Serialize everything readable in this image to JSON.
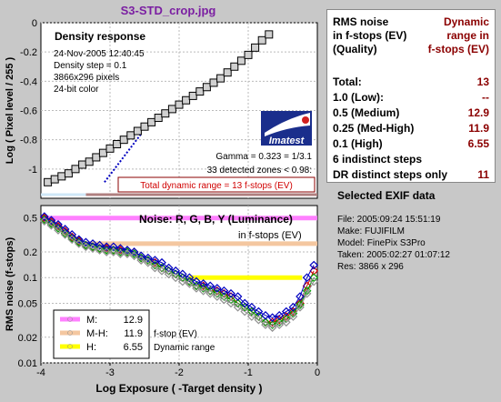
{
  "window_title": "S3-STD_crop.jpg",
  "colors": {
    "title": "#7b1fa2",
    "dark_red": "#8b0000",
    "red": "#d00000",
    "blue": "#0000c0",
    "green": "#00a000",
    "magenta": "#ff80ff",
    "peach": "#f4c7a0",
    "yellow": "#ffff00"
  },
  "chart_data": [
    {
      "type": "line",
      "title": "Density response",
      "info_lines": [
        "24-Nov-2005 12:40:45",
        "Density step = 0.1",
        "3866x296 pixels",
        "24-bit color"
      ],
      "ylabel": "Log ( Pixel level / 255 )",
      "xlim": [
        -4,
        0
      ],
      "ylim": [
        -1.2,
        0
      ],
      "yticks": [
        0,
        -0.2,
        -0.4,
        -0.6,
        -0.8,
        -1
      ],
      "ytick_labels": [
        "0",
        "-0.2",
        "-0.4",
        "-0.6",
        "-0.8",
        "-1"
      ],
      "series": [
        {
          "x": [
            -3.9,
            -3.8,
            -3.7,
            -3.6,
            -3.5,
            -3.4,
            -3.3,
            -3.2,
            -3.1,
            -3.0,
            -2.9,
            -2.8,
            -2.7,
            -2.6,
            -2.5,
            -2.4,
            -2.3,
            -2.2,
            -2.1,
            -2.0,
            -1.9,
            -1.8,
            -1.7,
            -1.6,
            -1.5,
            -1.4,
            -1.3,
            -1.2,
            -1.1,
            -1.0,
            -0.9,
            -0.8,
            -0.7
          ],
          "values": [
            -1.09,
            -1.07,
            -1.05,
            -1.03,
            -1.0,
            -0.97,
            -0.95,
            -0.92,
            -0.89,
            -0.86,
            -0.83,
            -0.8,
            -0.77,
            -0.74,
            -0.71,
            -0.68,
            -0.65,
            -0.62,
            -0.59,
            -0.56,
            -0.53,
            -0.5,
            -0.47,
            -0.44,
            -0.41,
            -0.38,
            -0.34,
            -0.3,
            -0.26,
            -0.22,
            -0.17,
            -0.12,
            -0.08
          ]
        },
        {
          "x": [
            -3.08,
            -2.55
          ],
          "values": [
            -1.09,
            -0.76
          ]
        }
      ],
      "gamma_text": "Gamma = 0.323 = 1/3.1",
      "zones_text": "33 detected zones < 0.98:",
      "total_text": "Total dynamic range = 13 f-stops (EV)",
      "logo_text": "Imatest"
    },
    {
      "type": "line",
      "title": "Noise: R, G, B, Y (Luminance)",
      "subtitle": "in f-stops (EV)",
      "ylabel": "RMS noise (f-stops)",
      "xlabel": "Log Exposure ( -Target density )",
      "xlim": [
        -4,
        0
      ],
      "ylim": [
        0.01,
        0.7
      ],
      "log_y": true,
      "xticks": [
        -4,
        -3,
        -2,
        -1,
        0
      ],
      "xtick_labels": [
        "-4",
        "-3",
        "-2",
        "-1",
        "0"
      ],
      "yticks": [
        0.5,
        0.2,
        0.1,
        0.05,
        0.02,
        0.01
      ],
      "ytick_labels": [
        "0.5",
        "0.2",
        "0.1",
        "0.05",
        "0.02",
        "0.01"
      ],
      "thresholds": [
        {
          "label": "M:",
          "value": "12.9",
          "y": 0.5,
          "x0": -3.98,
          "x1": 0
        },
        {
          "label": "M-H:",
          "value": "11.9",
          "y": 0.25,
          "x0": -3.45,
          "x1": 0
        },
        {
          "label": "H:",
          "value": "6.55",
          "y": 0.1,
          "x0": -1.85,
          "x1": -0.22
        }
      ],
      "noise_x": [
        -3.95,
        -3.85,
        -3.75,
        -3.65,
        -3.55,
        -3.45,
        -3.35,
        -3.25,
        -3.15,
        -3.05,
        -2.95,
        -2.85,
        -2.75,
        -2.65,
        -2.55,
        -2.45,
        -2.35,
        -2.25,
        -2.15,
        -2.05,
        -1.95,
        -1.85,
        -1.75,
        -1.65,
        -1.55,
        -1.45,
        -1.35,
        -1.25,
        -1.15,
        -1.05,
        -0.95,
        -0.85,
        -0.75,
        -0.65,
        -0.55,
        -0.45,
        -0.35,
        -0.25,
        -0.15,
        -0.05
      ],
      "series": [
        {
          "values": [
            0.5,
            0.45,
            0.4,
            0.35,
            0.3,
            0.27,
            0.24,
            0.23,
            0.22,
            0.22,
            0.21,
            0.21,
            0.2,
            0.2,
            0.17,
            0.16,
            0.15,
            0.13,
            0.12,
            0.11,
            0.1,
            0.09,
            0.08,
            0.08,
            0.07,
            0.07,
            0.065,
            0.06,
            0.05,
            0.045,
            0.04,
            0.035,
            0.03,
            0.03,
            0.032,
            0.035,
            0.04,
            0.05,
            0.08,
            0.12
          ]
        },
        {
          "values": [
            0.48,
            0.43,
            0.38,
            0.33,
            0.29,
            0.26,
            0.24,
            0.23,
            0.22,
            0.21,
            0.21,
            0.2,
            0.2,
            0.19,
            0.17,
            0.16,
            0.14,
            0.13,
            0.12,
            0.11,
            0.1,
            0.09,
            0.08,
            0.075,
            0.07,
            0.065,
            0.06,
            0.055,
            0.05,
            0.045,
            0.04,
            0.035,
            0.03,
            0.028,
            0.03,
            0.033,
            0.038,
            0.048,
            0.07,
            0.1
          ]
        },
        {
          "values": [
            0.52,
            0.47,
            0.42,
            0.37,
            0.32,
            0.28,
            0.26,
            0.25,
            0.24,
            0.23,
            0.23,
            0.22,
            0.21,
            0.2,
            0.18,
            0.17,
            0.16,
            0.15,
            0.13,
            0.12,
            0.11,
            0.1,
            0.09,
            0.085,
            0.08,
            0.075,
            0.07,
            0.065,
            0.06,
            0.05,
            0.045,
            0.04,
            0.036,
            0.034,
            0.036,
            0.04,
            0.045,
            0.06,
            0.1,
            0.14
          ]
        },
        {
          "values": [
            0.46,
            0.41,
            0.36,
            0.32,
            0.28,
            0.25,
            0.23,
            0.22,
            0.21,
            0.2,
            0.2,
            0.19,
            0.19,
            0.18,
            0.16,
            0.15,
            0.13,
            0.12,
            0.11,
            0.1,
            0.09,
            0.085,
            0.075,
            0.07,
            0.065,
            0.06,
            0.055,
            0.05,
            0.045,
            0.04,
            0.035,
            0.032,
            0.028,
            0.026,
            0.028,
            0.03,
            0.035,
            0.045,
            0.065,
            0.09
          ]
        }
      ],
      "legend_note1": "f-stop (EV)",
      "legend_note2": "Dynamic range"
    }
  ],
  "stats": {
    "header_left_1": "RMS noise",
    "header_left_2": "in f-stops (EV)",
    "header_left_3": "(Quality)",
    "header_right_1": "Dynamic",
    "header_right_2": "range in",
    "header_right_3": "f-stops (EV)",
    "rows": [
      {
        "label": "Total:",
        "value": "13"
      },
      {
        "label": "1.0  (Low):",
        "value": "--"
      },
      {
        "label": "0.5  (Medium)",
        "value": "12.9"
      },
      {
        "label": "0.25 (Med-High)",
        "value": "11.9"
      },
      {
        "label": "0.1  (High)",
        "value": "6.55"
      },
      {
        "label": "6 indistinct steps",
        "value": ""
      },
      {
        "label": "DR distinct steps only",
        "value": "11"
      }
    ]
  },
  "exif": {
    "title": "Selected EXIF data",
    "lines": [
      "File:  2005:09:24 15:51:19",
      "Make:  FUJIFILM",
      "Model: FinePix S3Pro",
      "Taken: 2005:02:27 01:07:12",
      "Res:   3866 x 296"
    ]
  }
}
